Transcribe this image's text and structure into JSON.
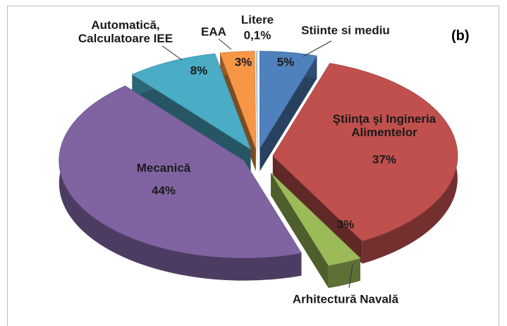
{
  "chart_data": {
    "type": "pie",
    "annotation": "(b)",
    "categories": [
      "Stiinte si mediu",
      "Ştiinţa şi Ingineria Alimentelor",
      "Arhitectură Navală",
      "Mecanică",
      "Automatică, Calculatoare IEE",
      "EAA",
      "Litere"
    ],
    "values": [
      5,
      37,
      3,
      44,
      8,
      3,
      0.1
    ],
    "value_labels": [
      "5%",
      "37%",
      "3%",
      "44%",
      "8%",
      "3%",
      "0,1%"
    ],
    "colors": [
      "#4f81bd",
      "#c0504d",
      "#9bbb59",
      "#8064a2",
      "#4bacc6",
      "#f79646",
      "#c6d9f1"
    ],
    "start_angle": 0,
    "direction": "clockwise",
    "exploded": true,
    "three_d": true
  }
}
